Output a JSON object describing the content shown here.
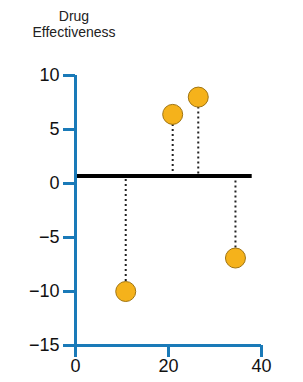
{
  "chart_data": {
    "type": "scatter",
    "ylabel": "Drug Effectiveness",
    "x": [
      10.8,
      20.9,
      26.4,
      34.4
    ],
    "values": [
      -10,
      6.4,
      8,
      -6.9
    ],
    "color": "#f5b21b",
    "marker": "circle",
    "line_style": "dotted",
    "reference_line": {
      "y": 0.7,
      "x_start": 0,
      "x_end": 38
    },
    "xlim": [
      0,
      40
    ],
    "xticks": [
      0,
      20,
      40
    ],
    "ylim": [
      -15,
      10
    ],
    "yticks": [
      -15,
      -10,
      -5,
      0,
      5,
      10
    ],
    "grid": false
  }
}
